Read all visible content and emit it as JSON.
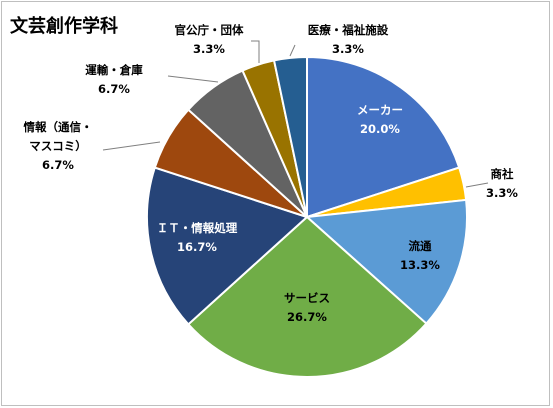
{
  "chart_data": {
    "type": "pie",
    "title": "文芸創作学科",
    "slices": [
      {
        "label": "メーカー",
        "value": 20.0,
        "percent_label": "20.0%",
        "color": "#4472c4",
        "label_inside": true
      },
      {
        "label": "商社",
        "value": 3.3,
        "percent_label": "3.3%",
        "color": "#ffc000",
        "label_inside": false
      },
      {
        "label": "流通",
        "value": 13.3,
        "percent_label": "13.3%",
        "color": "#5b9bd5",
        "label_inside": true
      },
      {
        "label": "サービス",
        "value": 26.7,
        "percent_label": "26.7%",
        "color": "#70ad47",
        "label_inside": true
      },
      {
        "label": "ＩＴ・情報処理",
        "value": 16.7,
        "percent_label": "16.7%",
        "color": "#264478",
        "label_inside": true
      },
      {
        "label": "情報（通信・マスコミ）",
        "value": 6.7,
        "percent_label": "6.7%",
        "color": "#9e480e",
        "label_inside": false
      },
      {
        "label": "運輸・倉庫",
        "value": 6.7,
        "percent_label": "6.7%",
        "color": "#636363",
        "label_inside": false
      },
      {
        "label": "官公庁・団体",
        "value": 3.3,
        "percent_label": "3.3%",
        "color": "#997300",
        "label_inside": false
      },
      {
        "label": "医療・福祉施設",
        "value": 3.3,
        "percent_label": "3.3%",
        "color": "#255e91",
        "label_inside": false
      }
    ]
  }
}
